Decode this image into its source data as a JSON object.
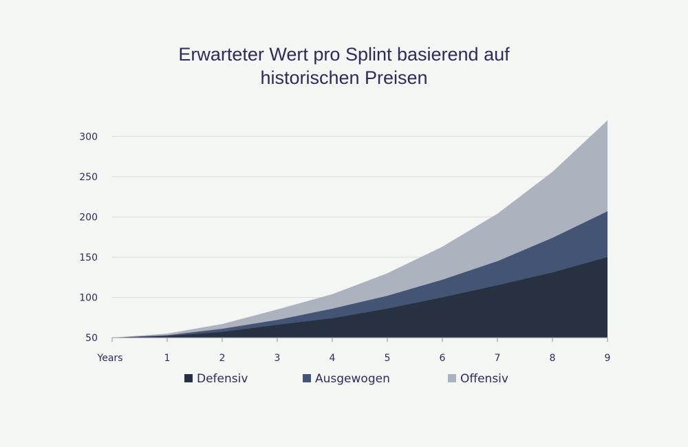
{
  "chart_data": {
    "type": "area",
    "stacked": true,
    "title_lines": [
      "Erwarteter Wert pro Splint basierend auf",
      "historischen Preisen"
    ],
    "x_labels": [
      "Years",
      "1",
      "2",
      "3",
      "4",
      "5",
      "6",
      "7",
      "8",
      "9"
    ],
    "x": [
      0,
      1,
      2,
      3,
      4,
      5,
      6,
      7,
      8,
      9
    ],
    "ylim": [
      50,
      320
    ],
    "yticks": [
      50,
      100,
      150,
      200,
      250,
      300
    ],
    "grid": true,
    "legend_position": "bottom",
    "series": [
      {
        "name": "Defensiv",
        "color": "#283142",
        "values": [
          50,
          52,
          57,
          66,
          74,
          86,
          100,
          115,
          131,
          150
        ]
      },
      {
        "name": "Ausgewogen",
        "color": "#445474",
        "values": [
          50,
          53,
          61,
          72,
          86,
          102,
          122,
          145,
          174,
          207
        ]
      },
      {
        "name": "Offensiv",
        "color": "#adb2bf",
        "values": [
          50,
          55,
          67,
          85,
          104,
          130,
          163,
          204,
          256,
          320
        ]
      }
    ]
  }
}
